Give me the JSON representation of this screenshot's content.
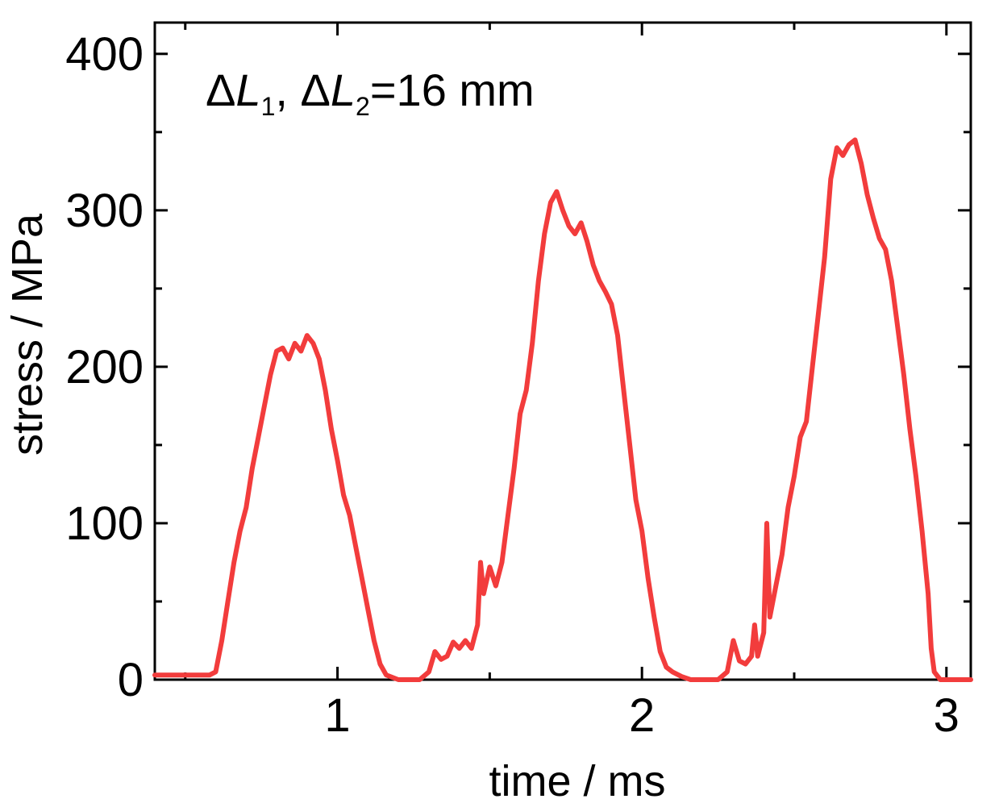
{
  "chart_data": {
    "type": "line",
    "title": "",
    "xlabel": "time / ms",
    "ylabel": "stress / MPa",
    "xlim": [
      0.4,
      3.08
    ],
    "ylim": [
      0,
      420
    ],
    "x_ticks": [
      1,
      2,
      3
    ],
    "x_tick_labels": [
      "1",
      "2",
      "3"
    ],
    "x_minor_ticks": [
      0.5,
      1.5,
      2.5
    ],
    "y_ticks": [
      0,
      100,
      200,
      300,
      400
    ],
    "y_tick_labels": [
      "0",
      "100",
      "200",
      "300",
      "400"
    ],
    "y_minor_ticks": [
      50,
      150,
      250,
      350
    ],
    "grid": false,
    "legend": "none",
    "annotation": {
      "delta1": "Δ",
      "L1": "L",
      "sub1": "1",
      "sep": ", ",
      "delta2": "Δ",
      "L2": "L",
      "sub2": "2",
      "value": "=16 mm"
    },
    "series": [
      {
        "color": "#f23c3c",
        "points": [
          [
            0.4,
            3
          ],
          [
            0.58,
            3
          ],
          [
            0.6,
            5
          ],
          [
            0.62,
            25
          ],
          [
            0.64,
            50
          ],
          [
            0.66,
            75
          ],
          [
            0.68,
            95
          ],
          [
            0.7,
            110
          ],
          [
            0.72,
            135
          ],
          [
            0.74,
            155
          ],
          [
            0.76,
            175
          ],
          [
            0.78,
            195
          ],
          [
            0.8,
            210
          ],
          [
            0.82,
            212
          ],
          [
            0.84,
            205
          ],
          [
            0.86,
            215
          ],
          [
            0.88,
            210
          ],
          [
            0.9,
            220
          ],
          [
            0.92,
            215
          ],
          [
            0.94,
            205
          ],
          [
            0.96,
            185
          ],
          [
            0.98,
            160
          ],
          [
            1.0,
            140
          ],
          [
            1.02,
            118
          ],
          [
            1.04,
            105
          ],
          [
            1.06,
            85
          ],
          [
            1.08,
            65
          ],
          [
            1.1,
            45
          ],
          [
            1.12,
            25
          ],
          [
            1.14,
            10
          ],
          [
            1.16,
            3
          ],
          [
            1.2,
            0
          ],
          [
            1.27,
            0
          ],
          [
            1.3,
            5
          ],
          [
            1.32,
            18
          ],
          [
            1.34,
            13
          ],
          [
            1.36,
            15
          ],
          [
            1.38,
            24
          ],
          [
            1.4,
            20
          ],
          [
            1.42,
            25
          ],
          [
            1.44,
            20
          ],
          [
            1.46,
            35
          ],
          [
            1.47,
            75
          ],
          [
            1.48,
            55
          ],
          [
            1.5,
            72
          ],
          [
            1.52,
            60
          ],
          [
            1.54,
            75
          ],
          [
            1.56,
            105
          ],
          [
            1.58,
            135
          ],
          [
            1.6,
            170
          ],
          [
            1.62,
            185
          ],
          [
            1.64,
            215
          ],
          [
            1.66,
            255
          ],
          [
            1.68,
            285
          ],
          [
            1.7,
            305
          ],
          [
            1.72,
            312
          ],
          [
            1.74,
            300
          ],
          [
            1.76,
            290
          ],
          [
            1.78,
            285
          ],
          [
            1.8,
            292
          ],
          [
            1.82,
            280
          ],
          [
            1.84,
            265
          ],
          [
            1.86,
            255
          ],
          [
            1.88,
            248
          ],
          [
            1.9,
            240
          ],
          [
            1.92,
            220
          ],
          [
            1.94,
            185
          ],
          [
            1.96,
            150
          ],
          [
            1.98,
            115
          ],
          [
            2.0,
            95
          ],
          [
            2.02,
            65
          ],
          [
            2.04,
            40
          ],
          [
            2.06,
            18
          ],
          [
            2.08,
            8
          ],
          [
            2.1,
            5
          ],
          [
            2.13,
            2
          ],
          [
            2.16,
            0
          ],
          [
            2.25,
            0
          ],
          [
            2.28,
            5
          ],
          [
            2.3,
            25
          ],
          [
            2.32,
            12
          ],
          [
            2.34,
            10
          ],
          [
            2.36,
            15
          ],
          [
            2.37,
            35
          ],
          [
            2.38,
            15
          ],
          [
            2.4,
            30
          ],
          [
            2.41,
            100
          ],
          [
            2.42,
            40
          ],
          [
            2.44,
            60
          ],
          [
            2.46,
            80
          ],
          [
            2.48,
            110
          ],
          [
            2.5,
            130
          ],
          [
            2.52,
            155
          ],
          [
            2.54,
            165
          ],
          [
            2.56,
            200
          ],
          [
            2.58,
            235
          ],
          [
            2.6,
            270
          ],
          [
            2.62,
            320
          ],
          [
            2.64,
            340
          ],
          [
            2.66,
            335
          ],
          [
            2.68,
            342
          ],
          [
            2.7,
            345
          ],
          [
            2.72,
            330
          ],
          [
            2.74,
            310
          ],
          [
            2.76,
            295
          ],
          [
            2.78,
            282
          ],
          [
            2.8,
            275
          ],
          [
            2.82,
            255
          ],
          [
            2.84,
            225
          ],
          [
            2.86,
            195
          ],
          [
            2.88,
            160
          ],
          [
            2.9,
            130
          ],
          [
            2.92,
            95
          ],
          [
            2.94,
            55
          ],
          [
            2.95,
            20
          ],
          [
            2.96,
            5
          ],
          [
            2.98,
            0
          ],
          [
            3.08,
            0
          ]
        ]
      }
    ]
  }
}
